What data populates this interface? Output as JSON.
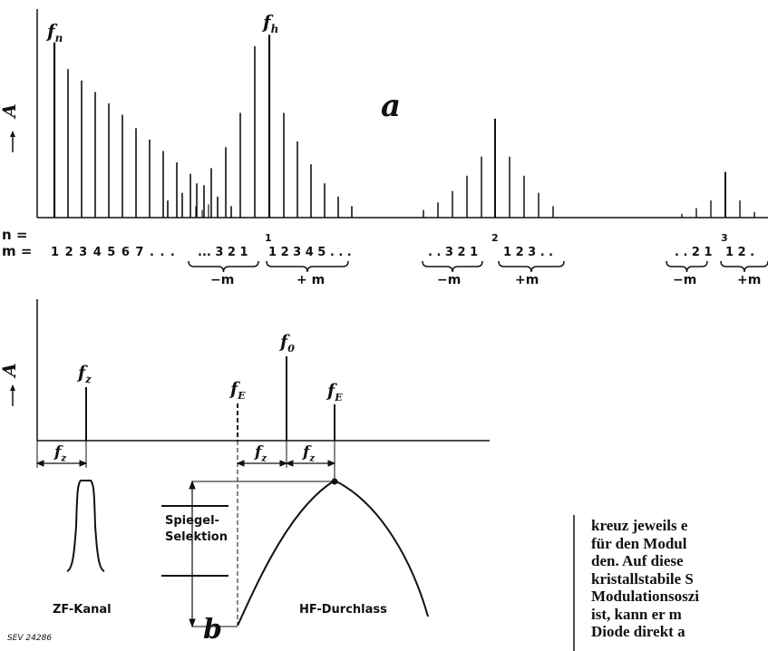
{
  "part_a": {
    "letter": "a",
    "axis_label": "A",
    "peak_labels": {
      "fn": "f",
      "fn_sub": "n",
      "fh": "f",
      "fh_sub": "h"
    },
    "n_row_label": "n =",
    "m_row_label": "m =",
    "n_values": [
      "1",
      "2",
      "3"
    ],
    "m_sequence_0": "1 2 3 4 5 6 7 . . .",
    "groups": [
      {
        "left": "... 3 2 1",
        "right": "1 2 3 4 5 . . .",
        "minus": "−m",
        "plus": "+ m"
      },
      {
        "left": ". . 3 2 1",
        "right": "1 2 3 . .",
        "minus": "−m",
        "plus": "+m"
      },
      {
        "left": ". . 2 1",
        "right": "1 2 .",
        "minus": "−m",
        "plus": "+m"
      }
    ],
    "spectrum": {
      "group0_right": [
        0.78,
        0.72,
        0.66,
        0.6,
        0.54,
        0.47,
        0.41,
        0.35,
        0.29,
        0.23,
        0.17,
        0.11,
        0.06
      ],
      "group1_left": [
        0.09,
        0.13,
        0.18,
        0.26,
        0.37,
        0.55,
        0.9
      ],
      "group1_right": [
        0.55,
        0.4,
        0.28,
        0.18,
        0.11,
        0.06
      ],
      "group2_left": [
        0.04,
        0.08,
        0.14,
        0.22,
        0.32,
        0.52
      ],
      "group2_right": [
        0.32,
        0.22,
        0.13,
        0.06
      ],
      "group3_left": [
        0.02,
        0.05,
        0.09,
        0.24
      ],
      "group3_right": [
        0.09,
        0.03
      ]
    }
  },
  "part_b": {
    "letter": "b",
    "axis_label": "A",
    "line_labels": {
      "fz": "f",
      "fz_sub": "z",
      "fe_left": "f",
      "fe_left_sub": "E",
      "f0": "f",
      "f0_sub": "0",
      "fe_right": "f",
      "fe_right_sub": "E"
    },
    "span_labels": {
      "fz_main": "z",
      "fz_a": "z",
      "fz_b": "z"
    },
    "spiegel_label_1": "Spiegel-",
    "spiegel_label_2": "Selektion",
    "zf_label": "ZF-Kanal",
    "hf_label": "HF-Durchlass",
    "plate_code": "SEV 24286"
  },
  "body_text": [
    "kreuz jeweils e",
    "für den Modul",
    "den. Auf diese",
    "kristallstabile S",
    "Modulationsoszi",
    "ist, kann er m",
    "Diode direkt a"
  ]
}
